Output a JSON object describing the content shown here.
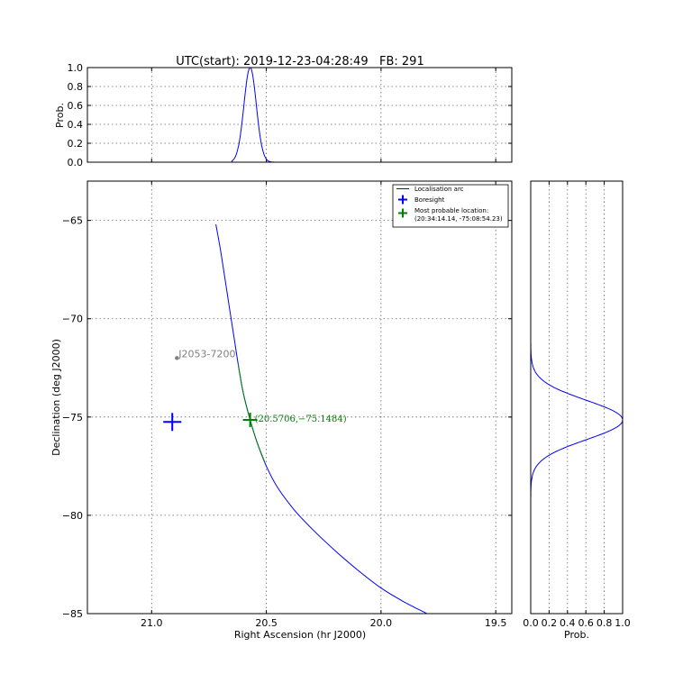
{
  "title": "UTC(start): 2019-12-23-04:28:49   FB: 291",
  "chart_data": [
    {
      "id": "top",
      "type": "line",
      "xlim": [
        21.28,
        19.43
      ],
      "ylim": [
        0,
        1
      ],
      "yticks": [
        "0.0",
        "0.2",
        "0.4",
        "0.6",
        "0.8",
        "1.0"
      ],
      "ylabel": "Prob.",
      "series": [
        {
          "color": "#0000ff",
          "peak_x": 20.5706,
          "sigma_x": 0.027,
          "start_x": 20.65,
          "end_x": 20.46
        }
      ]
    },
    {
      "id": "main",
      "type": "scatter",
      "xlim": [
        21.28,
        19.43
      ],
      "ylim": [
        -85,
        -63
      ],
      "xticks": [
        "21.0",
        "20.5",
        "20.0",
        "19.5"
      ],
      "yticks": [
        "−65",
        "−70",
        "−75",
        "−80",
        "−85"
      ],
      "xlabel": "Right Ascension (hr J2000)",
      "ylabel": "Declination (deg J2000)",
      "arc": {
        "color": "#0000ff",
        "highlight_color": "#008000",
        "highlight_dec_range": [
          -72.3,
          -77.3
        ],
        "points": [
          [
            20.72,
            -65.2
          ],
          [
            20.7,
            -66.5
          ],
          [
            20.68,
            -68.0
          ],
          [
            20.66,
            -69.5
          ],
          [
            20.64,
            -71.0
          ],
          [
            20.62,
            -72.5
          ],
          [
            20.6,
            -73.8
          ],
          [
            20.5706,
            -75.15
          ],
          [
            20.54,
            -76.3
          ],
          [
            20.5,
            -77.5
          ],
          [
            20.45,
            -78.6
          ],
          [
            20.38,
            -79.7
          ],
          [
            20.3,
            -80.7
          ],
          [
            20.2,
            -81.8
          ],
          [
            20.1,
            -82.8
          ],
          [
            20.0,
            -83.7
          ],
          [
            19.9,
            -84.4
          ],
          [
            19.8,
            -85.0
          ]
        ]
      },
      "boresight": {
        "ra": 20.91,
        "dec": -75.25,
        "color": "#0000ff"
      },
      "most_probable": {
        "ra": 20.5706,
        "dec": -75.1484,
        "color": "#008000",
        "label": "(20.5706,−75.1484)"
      },
      "source": {
        "ra": 20.89,
        "dec": -72.0,
        "label": "J2053-7200",
        "color": "#808080"
      },
      "legend": {
        "position": "upper right",
        "entries": [
          {
            "label": "Localisation arc",
            "marker": "line",
            "color": "#0000ff"
          },
          {
            "label": "Boresight",
            "marker": "plus",
            "color": "#0000ff"
          },
          {
            "label": "Most probable location:",
            "label2": "(20:34:14.14, -75:08:54.23)",
            "marker": "plus",
            "color": "#008000"
          }
        ]
      }
    },
    {
      "id": "side",
      "type": "line",
      "xlim": [
        0,
        1
      ],
      "ylim": [
        -85,
        -63
      ],
      "xticks": [
        "0.0",
        "0.2",
        "0.4",
        "0.6",
        "0.8",
        "1.0"
      ],
      "xlabel": "Prob.",
      "series": [
        {
          "color": "#0000ff",
          "peak_y": -75.15,
          "sigma_y": 1.0,
          "start_y": -71.0,
          "end_y": -79.3
        }
      ]
    }
  ]
}
